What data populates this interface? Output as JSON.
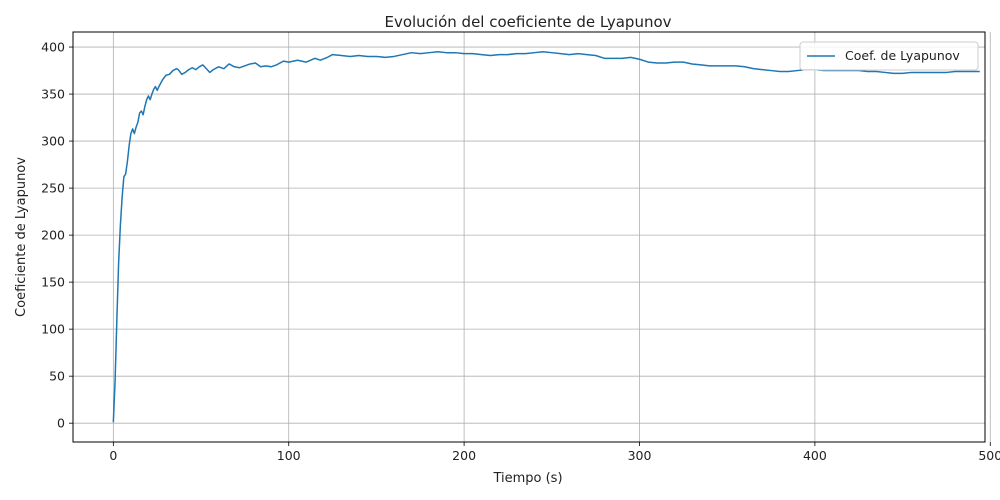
{
  "chart_data": {
    "type": "line",
    "title": "Evolución del coeficiente de Lyapunov",
    "xlabel": "Tiempo (s)",
    "ylabel": "Coeficiente de Lyapunov",
    "xlim": [
      -23,
      497
    ],
    "ylim": [
      -20,
      416
    ],
    "xticks": [
      0,
      100,
      200,
      300,
      400,
      500
    ],
    "yticks": [
      0,
      50,
      100,
      150,
      200,
      250,
      300,
      350,
      400
    ],
    "grid": true,
    "legend_position": "top-right",
    "colors": {
      "series": "#1f77b4",
      "grid": "#b0b0b0"
    },
    "series": [
      {
        "name": "Coef. de Lyapunov",
        "points": [
          [
            0,
            1
          ],
          [
            1,
            45
          ],
          [
            2,
            110
          ],
          [
            3,
            170
          ],
          [
            4,
            210
          ],
          [
            5,
            240
          ],
          [
            6,
            262
          ],
          [
            7,
            265
          ],
          [
            8,
            278
          ],
          [
            9,
            295
          ],
          [
            10,
            308
          ],
          [
            11,
            313
          ],
          [
            12,
            308
          ],
          [
            13,
            315
          ],
          [
            14,
            320
          ],
          [
            15,
            330
          ],
          [
            16,
            332
          ],
          [
            17,
            328
          ],
          [
            18,
            337
          ],
          [
            19,
            344
          ],
          [
            20,
            348
          ],
          [
            21,
            344
          ],
          [
            22,
            350
          ],
          [
            23,
            355
          ],
          [
            24,
            358
          ],
          [
            25,
            354
          ],
          [
            26,
            358
          ],
          [
            28,
            365
          ],
          [
            30,
            370
          ],
          [
            32,
            371
          ],
          [
            34,
            375
          ],
          [
            36,
            377
          ],
          [
            37,
            376
          ],
          [
            39,
            371
          ],
          [
            41,
            373
          ],
          [
            43,
            376
          ],
          [
            45,
            378
          ],
          [
            47,
            376
          ],
          [
            49,
            379
          ],
          [
            51,
            381
          ],
          [
            53,
            377
          ],
          [
            55,
            373
          ],
          [
            57,
            376
          ],
          [
            60,
            379
          ],
          [
            63,
            377
          ],
          [
            66,
            382
          ],
          [
            69,
            379
          ],
          [
            72,
            378
          ],
          [
            75,
            380
          ],
          [
            78,
            382
          ],
          [
            81,
            383
          ],
          [
            84,
            379
          ],
          [
            87,
            380
          ],
          [
            90,
            379
          ],
          [
            93,
            381
          ],
          [
            97,
            385
          ],
          [
            100,
            384
          ],
          [
            105,
            386
          ],
          [
            110,
            384
          ],
          [
            115,
            388
          ],
          [
            118,
            386
          ],
          [
            122,
            389
          ],
          [
            125,
            392
          ],
          [
            130,
            391
          ],
          [
            135,
            390
          ],
          [
            140,
            391
          ],
          [
            145,
            390
          ],
          [
            150,
            390
          ],
          [
            155,
            389
          ],
          [
            160,
            390
          ],
          [
            165,
            392
          ],
          [
            170,
            394
          ],
          [
            175,
            393
          ],
          [
            180,
            394
          ],
          [
            185,
            395
          ],
          [
            190,
            394
          ],
          [
            195,
            394
          ],
          [
            200,
            393
          ],
          [
            205,
            393
          ],
          [
            210,
            392
          ],
          [
            215,
            391
          ],
          [
            220,
            392
          ],
          [
            225,
            392
          ],
          [
            230,
            393
          ],
          [
            235,
            393
          ],
          [
            240,
            394
          ],
          [
            245,
            395
          ],
          [
            250,
            394
          ],
          [
            255,
            393
          ],
          [
            260,
            392
          ],
          [
            265,
            393
          ],
          [
            270,
            392
          ],
          [
            275,
            391
          ],
          [
            280,
            388
          ],
          [
            285,
            388
          ],
          [
            290,
            388
          ],
          [
            295,
            389
          ],
          [
            300,
            387
          ],
          [
            305,
            384
          ],
          [
            310,
            383
          ],
          [
            315,
            383
          ],
          [
            320,
            384
          ],
          [
            325,
            384
          ],
          [
            330,
            382
          ],
          [
            335,
            381
          ],
          [
            340,
            380
          ],
          [
            345,
            380
          ],
          [
            350,
            380
          ],
          [
            355,
            380
          ],
          [
            360,
            379
          ],
          [
            365,
            377
          ],
          [
            370,
            376
          ],
          [
            375,
            375
          ],
          [
            380,
            374
          ],
          [
            385,
            374
          ],
          [
            390,
            375
          ],
          [
            395,
            376
          ],
          [
            400,
            376
          ],
          [
            405,
            375
          ],
          [
            410,
            375
          ],
          [
            415,
            375
          ],
          [
            420,
            375
          ],
          [
            425,
            375
          ],
          [
            430,
            374
          ],
          [
            435,
            374
          ],
          [
            440,
            373
          ],
          [
            445,
            372
          ],
          [
            450,
            372
          ],
          [
            455,
            373
          ],
          [
            460,
            373
          ],
          [
            465,
            373
          ],
          [
            470,
            373
          ],
          [
            475,
            373
          ],
          [
            480,
            374
          ],
          [
            485,
            374
          ],
          [
            490,
            374
          ],
          [
            494,
            374
          ]
        ]
      }
    ]
  }
}
